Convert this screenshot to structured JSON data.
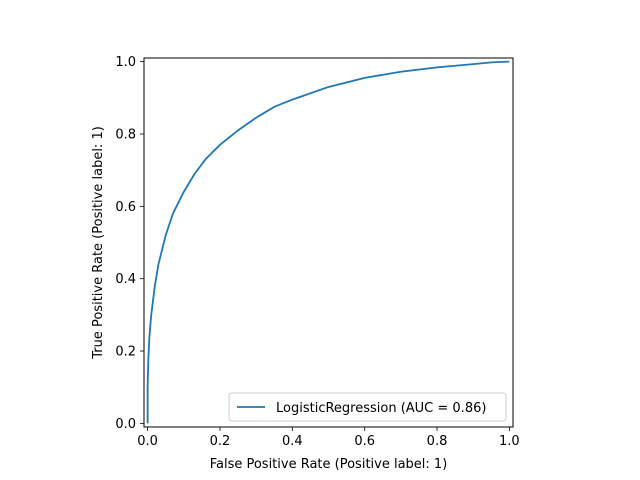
{
  "chart_data": {
    "type": "line",
    "title": "",
    "xlabel": "False Positive Rate (Positive label: 1)",
    "ylabel": "True Positive Rate (Positive label: 1)",
    "xlim": [
      -0.01,
      1.01
    ],
    "ylim": [
      -0.01,
      1.01
    ],
    "xticks": [
      0.0,
      0.2,
      0.4,
      0.6,
      0.8,
      1.0
    ],
    "yticks": [
      0.0,
      0.2,
      0.4,
      0.6,
      0.8,
      1.0
    ],
    "xtick_labels": [
      "0.0",
      "0.2",
      "0.4",
      "0.6",
      "0.8",
      "1.0"
    ],
    "ytick_labels": [
      "0.0",
      "0.2",
      "0.4",
      "0.6",
      "0.8",
      "1.0"
    ],
    "grid": false,
    "legend_position": "lower-right",
    "series": [
      {
        "name": "LogisticRegression (AUC = 0.86)",
        "color": "#1f77b4",
        "x": [
          0.0,
          0.0,
          0.002,
          0.005,
          0.01,
          0.02,
          0.03,
          0.05,
          0.07,
          0.1,
          0.13,
          0.16,
          0.2,
          0.25,
          0.3,
          0.35,
          0.4,
          0.5,
          0.6,
          0.7,
          0.8,
          0.9,
          0.95,
          1.0
        ],
        "y": [
          0.0,
          0.1,
          0.18,
          0.24,
          0.3,
          0.38,
          0.44,
          0.52,
          0.58,
          0.64,
          0.69,
          0.73,
          0.77,
          0.81,
          0.845,
          0.875,
          0.895,
          0.93,
          0.955,
          0.972,
          0.984,
          0.993,
          0.998,
          1.0
        ]
      }
    ]
  }
}
